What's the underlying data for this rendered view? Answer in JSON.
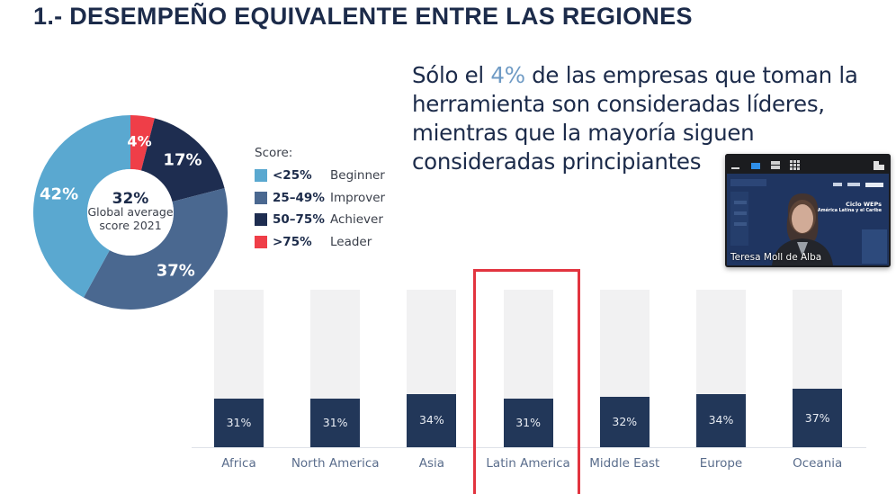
{
  "slide": {
    "title": "1.- DESEMPEÑO EQUIVALENTE ENTRE LAS REGIONES",
    "headline": {
      "before": "Sólo el ",
      "accent": "4%",
      "after": " de las empresas que toman la herramienta son consideradas líderes, mientras que la mayoría siguen consideradas principiantes"
    },
    "colors": {
      "title": "#1c2b4a",
      "accent": "#6e9ac4",
      "beginner": "#5aa8d0",
      "improver": "#4a6890",
      "achiever": "#1e2d50",
      "leader": "#ef3e48",
      "bar_fill": "#223759",
      "bar_bg": "#f1f1f2",
      "highlight": "#e2343f"
    }
  },
  "donut": {
    "center_value": "32%",
    "center_label_line1": "Global average",
    "center_label_line2": "score 2021",
    "legend_title": "Score:",
    "segments": [
      {
        "name": "Leader",
        "range": ">75%",
        "value": 4,
        "label": "4%",
        "color_key": "leader"
      },
      {
        "name": "Achiever",
        "range": "50–75%",
        "value": 17,
        "label": "17%",
        "color_key": "achiever"
      },
      {
        "name": "Improver",
        "range": "25–49%",
        "value": 37,
        "label": "37%",
        "color_key": "improver"
      },
      {
        "name": "Beginner",
        "range": "<25%",
        "value": 42,
        "label": "42%",
        "color_key": "beginner"
      }
    ],
    "legend_order": [
      3,
      2,
      1,
      0
    ]
  },
  "chart_data": {
    "type": "bar",
    "title": "",
    "xlabel": "",
    "ylabel": "",
    "ylim": [
      0,
      100
    ],
    "grid": false,
    "categories": [
      "Africa",
      "North America",
      "Asia",
      "Latin America",
      "Middle East",
      "Europe",
      "Oceania"
    ],
    "values": [
      31,
      31,
      34,
      31,
      32,
      34,
      37
    ],
    "labels": [
      "31%",
      "31%",
      "34%",
      "31%",
      "32%",
      "34%",
      "37%"
    ],
    "highlighted_category": "Latin America"
  },
  "video": {
    "participant_name": "Teresa Moll de Alba",
    "banner_title": "Ciclo WEPs",
    "banner_subtitle": "América Latina y el Caribe",
    "toolbar_icons": [
      "minimize-icon",
      "speaker-view-icon",
      "stacked-view-icon",
      "gallery-grid-icon",
      "exit-minimized-icon"
    ]
  }
}
